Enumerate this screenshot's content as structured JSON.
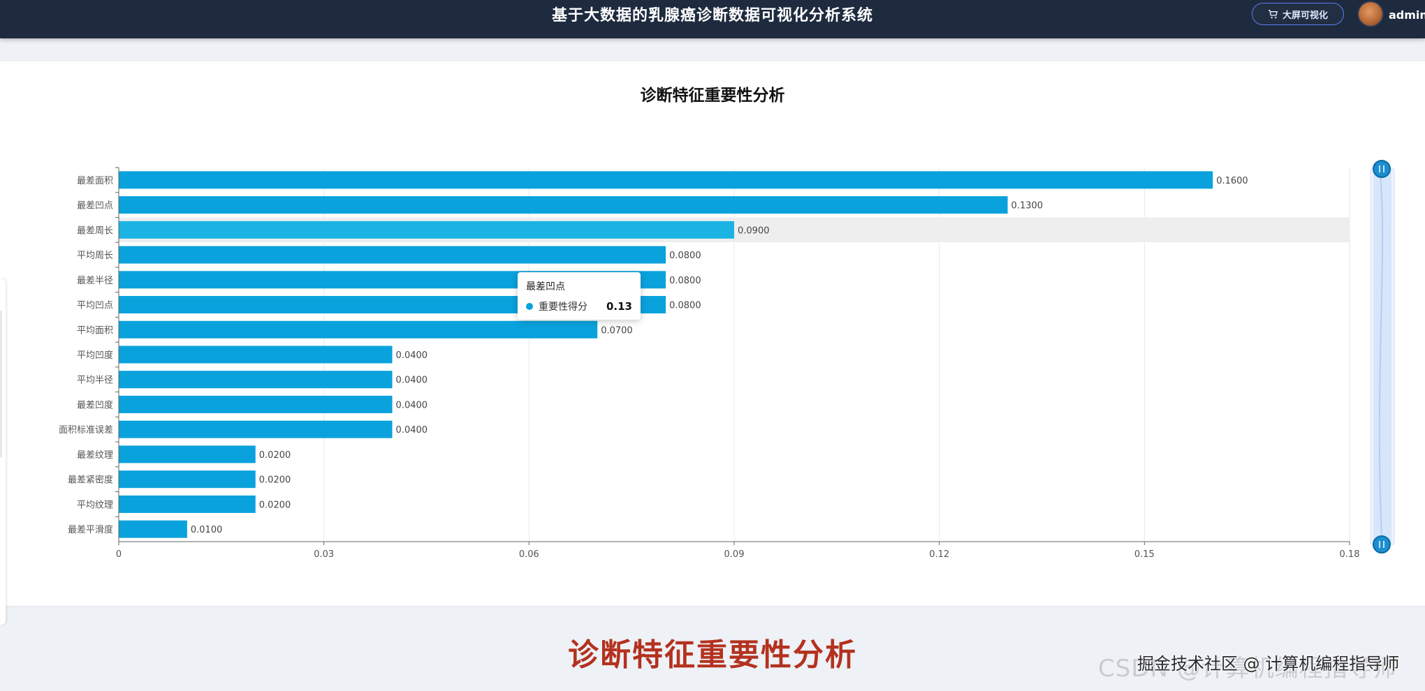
{
  "header": {
    "title": "基于大数据的乳腺癌诊断数据可视化分析系统",
    "bigscreen_label": "大屏可视化",
    "user": "admin"
  },
  "chart_data": {
    "type": "bar",
    "orientation": "horizontal",
    "title": "诊断特征重要性分析",
    "categories": [
      "最差面积",
      "最差凹点",
      "最差周长",
      "平均周长",
      "最差半径",
      "平均凹点",
      "平均面积",
      "平均凹度",
      "平均半径",
      "最差凹度",
      "面积标准误差",
      "最差纹理",
      "最差紧密度",
      "平均纹理",
      "最差平滑度"
    ],
    "series": [
      {
        "name": "重要性得分",
        "values": [
          0.16,
          0.13,
          0.09,
          0.08,
          0.08,
          0.08,
          0.07,
          0.04,
          0.04,
          0.04,
          0.04,
          0.02,
          0.02,
          0.02,
          0.01
        ],
        "color": "#0aa2dc"
      }
    ],
    "value_labels": [
      "0.1600",
      "0.1300",
      "0.0900",
      "0.0800",
      "0.0800",
      "0.0800",
      "0.0700",
      "0.0400",
      "0.0400",
      "0.0400",
      "0.0400",
      "0.0200",
      "0.0200",
      "0.0200",
      "0.0100"
    ],
    "xticks": [
      "0",
      "0.03",
      "0.06",
      "0.09",
      "0.12",
      "0.15",
      "0.18"
    ],
    "xlim": [
      0,
      0.18
    ],
    "highlighted": "最差周长",
    "grid": true,
    "datazoom": "vertical-right"
  },
  "tooltip": {
    "title": "最差凹点",
    "series_name": "重要性得分",
    "value": "0.13"
  },
  "caption": "诊断特征重要性分析",
  "watermark": {
    "back": "CSDN @计算机编程指导师",
    "front": "掘金技术社区 @ 计算机编程指导师"
  }
}
